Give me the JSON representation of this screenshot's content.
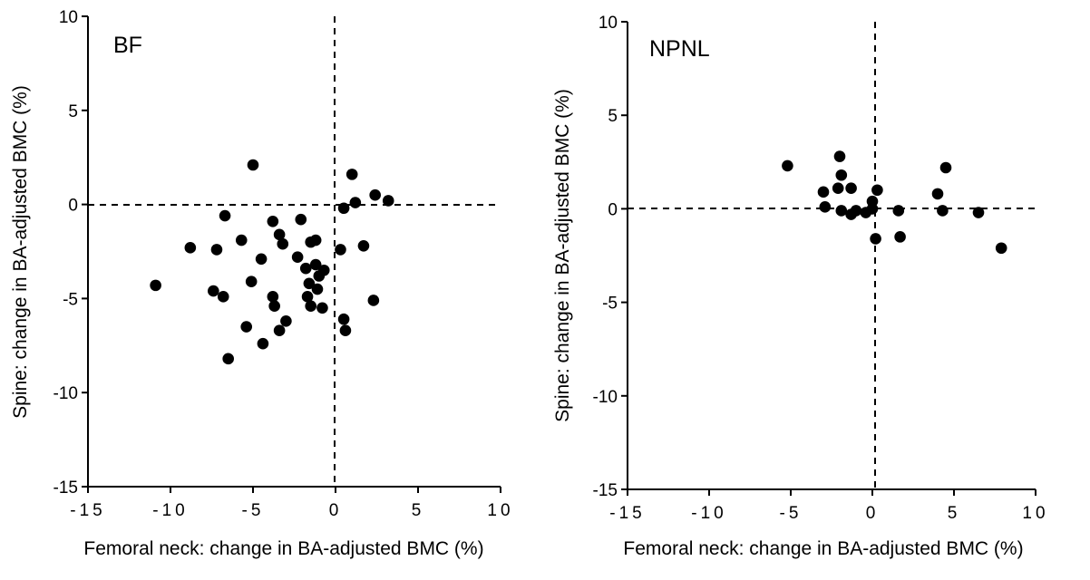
{
  "chart_data": [
    {
      "type": "scatter",
      "title": "BF",
      "xlabel": "Femoral neck: change in BA-adjusted BMC (%)",
      "ylabel": "Spine: change in BA-adjusted BMC (%)",
      "xlim": [
        -15,
        10
      ],
      "ylim": [
        -15,
        10
      ],
      "xticks": [
        -15,
        -10,
        -5,
        0,
        5,
        10
      ],
      "xtick_labels": [
        "-15",
        "-10",
        "-5",
        "0",
        "5",
        "10"
      ],
      "yticks": [
        -15,
        -10,
        -5,
        0,
        5,
        10
      ],
      "ytick_labels": [
        "-15",
        "-10",
        "-5",
        "0",
        "5",
        "10"
      ],
      "reference_lines": {
        "x": 0,
        "y": 0,
        "style": "dashed"
      },
      "grid": false,
      "points": [
        {
          "x": -5.0,
          "y": 2.1
        },
        {
          "x": 1.0,
          "y": 1.6
        },
        {
          "x": 2.4,
          "y": 0.5
        },
        {
          "x": 3.2,
          "y": 0.2
        },
        {
          "x": 1.2,
          "y": 0.1
        },
        {
          "x": 0.5,
          "y": -0.2
        },
        {
          "x": -6.7,
          "y": -0.6
        },
        {
          "x": -2.1,
          "y": -0.8
        },
        {
          "x": -3.8,
          "y": -0.9
        },
        {
          "x": -3.4,
          "y": -1.6
        },
        {
          "x": -5.7,
          "y": -1.9
        },
        {
          "x": -1.5,
          "y": -2.0
        },
        {
          "x": -1.2,
          "y": -1.9
        },
        {
          "x": -3.2,
          "y": -2.1
        },
        {
          "x": -8.8,
          "y": -2.3
        },
        {
          "x": -7.2,
          "y": -2.4
        },
        {
          "x": 1.7,
          "y": -2.2
        },
        {
          "x": 0.3,
          "y": -2.4
        },
        {
          "x": -2.3,
          "y": -2.8
        },
        {
          "x": -4.5,
          "y": -2.9
        },
        {
          "x": -1.2,
          "y": -3.2
        },
        {
          "x": -1.8,
          "y": -3.4
        },
        {
          "x": -0.7,
          "y": -3.5
        },
        {
          "x": -1.0,
          "y": -3.8
        },
        {
          "x": -10.9,
          "y": -4.3
        },
        {
          "x": -7.4,
          "y": -4.6
        },
        {
          "x": -5.1,
          "y": -4.1
        },
        {
          "x": -1.6,
          "y": -4.2
        },
        {
          "x": -1.1,
          "y": -4.5
        },
        {
          "x": -6.8,
          "y": -4.9
        },
        {
          "x": -3.8,
          "y": -4.9
        },
        {
          "x": -1.7,
          "y": -4.9
        },
        {
          "x": 2.3,
          "y": -5.1
        },
        {
          "x": -3.7,
          "y": -5.4
        },
        {
          "x": -1.5,
          "y": -5.4
        },
        {
          "x": -0.8,
          "y": -5.5
        },
        {
          "x": -3.0,
          "y": -6.2
        },
        {
          "x": 0.5,
          "y": -6.1
        },
        {
          "x": -5.4,
          "y": -6.5
        },
        {
          "x": -3.4,
          "y": -6.7
        },
        {
          "x": 0.6,
          "y": -6.7
        },
        {
          "x": -4.4,
          "y": -7.4
        },
        {
          "x": -6.5,
          "y": -8.2
        }
      ]
    },
    {
      "type": "scatter",
      "title": "NPNL",
      "xlabel": "Femoral neck: change in BA-adjusted BMC (%)",
      "ylabel": "Spine: change in BA-adjusted BMC (%)",
      "xlim": [
        -15,
        10
      ],
      "ylim": [
        -15,
        10
      ],
      "xticks": [
        -15,
        -10,
        -5,
        0,
        5,
        10
      ],
      "xtick_labels": [
        "-15",
        "-10",
        "-5",
        "0",
        "5",
        "10"
      ],
      "yticks": [
        -15,
        -10,
        -5,
        0,
        5,
        10
      ],
      "ytick_labels": [
        "-15",
        "-10",
        "-5",
        "0",
        "5",
        "10"
      ],
      "reference_lines": {
        "x": 0,
        "y": 0,
        "style": "dashed"
      },
      "grid": false,
      "points": [
        {
          "x": -5.2,
          "y": 2.3
        },
        {
          "x": -2.0,
          "y": 2.8
        },
        {
          "x": -1.9,
          "y": 1.8
        },
        {
          "x": -2.1,
          "y": 1.1
        },
        {
          "x": -1.3,
          "y": 1.1
        },
        {
          "x": -3.0,
          "y": 0.9
        },
        {
          "x": -2.9,
          "y": 0.1
        },
        {
          "x": -1.9,
          "y": -0.1
        },
        {
          "x": -1.3,
          "y": -0.3
        },
        {
          "x": -1.0,
          "y": -0.1
        },
        {
          "x": -0.4,
          "y": -0.2
        },
        {
          "x": 0.0,
          "y": 0.4
        },
        {
          "x": 0.3,
          "y": 1.0
        },
        {
          "x": 0.0,
          "y": 0.0
        },
        {
          "x": 0.2,
          "y": -1.6
        },
        {
          "x": 1.6,
          "y": -0.1
        },
        {
          "x": 1.7,
          "y": -1.5
        },
        {
          "x": 4.5,
          "y": 2.2
        },
        {
          "x": 4.0,
          "y": 0.8
        },
        {
          "x": 4.3,
          "y": -0.1
        },
        {
          "x": 6.5,
          "y": -0.2
        },
        {
          "x": 7.9,
          "y": -2.1
        }
      ]
    }
  ]
}
